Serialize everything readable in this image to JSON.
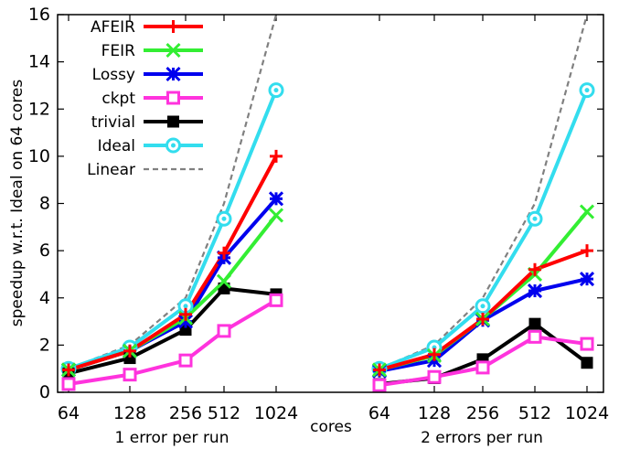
{
  "chart_data": {
    "type": "line",
    "ylabel": "speedup w.r.t. Ideal on 64 cores",
    "xlabel": "cores",
    "ylim": [
      0,
      16
    ],
    "yticks": [
      0,
      2,
      4,
      6,
      8,
      10,
      12,
      14,
      16
    ],
    "x": [
      "64",
      "128",
      "256",
      "512",
      "1024"
    ],
    "groups": [
      {
        "label": "1 error per run"
      },
      {
        "label": "2 errors per run"
      }
    ],
    "legend_position": "top-left",
    "series": [
      {
        "name": "AFEIR",
        "color": "#ff0000",
        "marker": "plus",
        "dashed": false,
        "values": [
          [
            0.95,
            1.75,
            3.3,
            5.9,
            10.0
          ],
          [
            0.95,
            1.6,
            3.1,
            5.2,
            6.0
          ]
        ]
      },
      {
        "name": "FEIR",
        "color": "#33ee33",
        "marker": "x",
        "dashed": false,
        "values": [
          [
            0.95,
            1.75,
            3.15,
            4.7,
            7.5
          ],
          [
            0.95,
            1.55,
            3.1,
            5.0,
            7.65
          ]
        ]
      },
      {
        "name": "Lossy",
        "color": "#0000ee",
        "marker": "star",
        "dashed": false,
        "values": [
          [
            0.95,
            1.75,
            3.0,
            5.7,
            8.2
          ],
          [
            0.9,
            1.35,
            3.05,
            4.3,
            4.8
          ]
        ]
      },
      {
        "name": "ckpt",
        "color": "#ff33dd",
        "marker": "square-open",
        "dashed": false,
        "values": [
          [
            0.35,
            0.75,
            1.35,
            2.6,
            3.9
          ],
          [
            0.3,
            0.65,
            1.05,
            2.35,
            2.05
          ]
        ]
      },
      {
        "name": "trivial",
        "color": "#000000",
        "marker": "square-filled",
        "dashed": false,
        "values": [
          [
            0.8,
            1.45,
            2.65,
            4.4,
            4.15
          ],
          [
            0.35,
            0.6,
            1.4,
            2.9,
            1.25
          ]
        ]
      },
      {
        "name": "Ideal",
        "color": "#33ddee",
        "marker": "circle-open",
        "dashed": false,
        "values": [
          [
            1.0,
            1.9,
            3.65,
            7.35,
            12.8
          ],
          [
            1.0,
            1.9,
            3.65,
            7.35,
            12.8
          ]
        ]
      },
      {
        "name": "Linear",
        "color": "#808080",
        "marker": "none",
        "dashed": true,
        "values": [
          [
            1,
            2,
            4,
            8,
            16
          ],
          [
            1,
            2,
            4,
            8,
            16
          ]
        ]
      }
    ]
  }
}
